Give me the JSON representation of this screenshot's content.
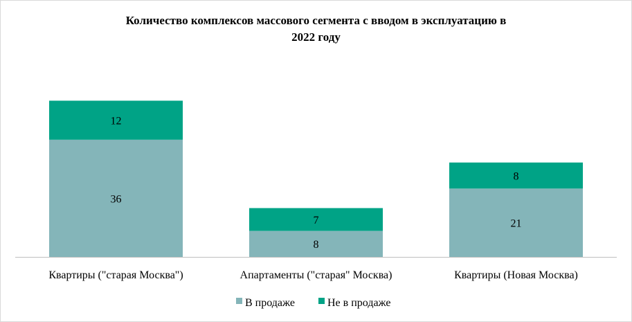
{
  "chart_data": {
    "type": "bar",
    "stacked": true,
    "title_line1": "Количество комплексов массового сегмента с вводом в эксплуатацию в",
    "title_line2": "2022 году",
    "categories": [
      "Квартиры (\"старая Москва\")",
      "Апартаменты (\"старая\" Москва)",
      "Квартиры (Новая Москва)"
    ],
    "series": [
      {
        "name": "В продаже",
        "values": [
          36,
          8,
          21
        ],
        "color": "#84b5b9"
      },
      {
        "name": "Не в продаже",
        "values": [
          12,
          7,
          8
        ],
        "color": "#00a386"
      }
    ],
    "grid": false,
    "legend_position": "bottom"
  }
}
